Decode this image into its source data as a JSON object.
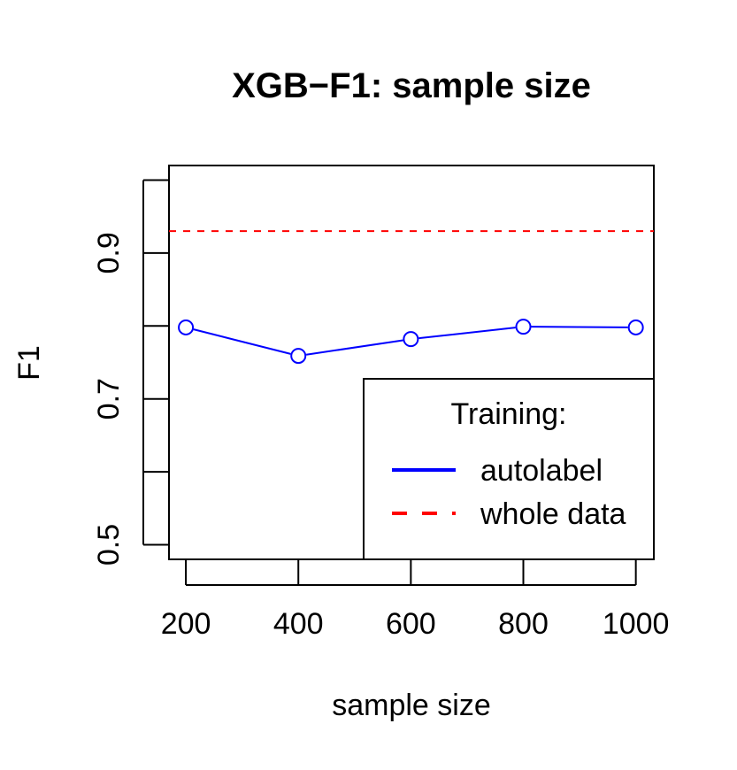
{
  "chart_data": {
    "type": "line",
    "title": "XGB−F1: sample size",
    "xlabel": "sample size",
    "ylabel": "F1",
    "x": [
      200,
      400,
      600,
      800,
      1000
    ],
    "xlim": [
      170,
      1032
    ],
    "ylim": [
      0.48,
      1.02
    ],
    "x_ticks": [
      "200",
      "400",
      "600",
      "800",
      "1000"
    ],
    "x_tick_values": [
      200,
      400,
      600,
      800,
      1000
    ],
    "y_tick_values": [
      0.5,
      0.6,
      0.7,
      0.8,
      0.9,
      1.0
    ],
    "y_tick_labels": [
      "0.5",
      "",
      "0.7",
      "",
      "0.9",
      ""
    ],
    "grid": false,
    "series": [
      {
        "name": "autolabel",
        "values": [
          0.798,
          0.759,
          0.782,
          0.799,
          0.798
        ],
        "color": "#0000ff",
        "line_style": "solid",
        "marker": "open-circle"
      }
    ],
    "reference_lines": [
      {
        "name": "whole data",
        "y": 0.93,
        "color": "#ff0000",
        "line_style": "dashed"
      }
    ],
    "legend": {
      "title": "Training:",
      "position": "bottom-right",
      "entries": [
        {
          "label": "autolabel",
          "color": "#0000ff",
          "line_style": "solid"
        },
        {
          "label": "whole data",
          "color": "#ff0000",
          "line_style": "dashed"
        }
      ]
    }
  }
}
